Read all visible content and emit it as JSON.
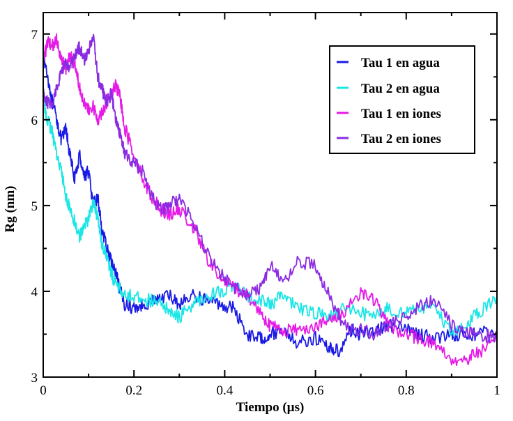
{
  "chart_data": {
    "type": "line",
    "title": "",
    "xlabel": "Tiempo (µs)",
    "ylabel": "Rg (nm)",
    "xlim": [
      0,
      1
    ],
    "ylim": [
      3,
      7.25
    ],
    "x_ticks": [
      0,
      0.2,
      0.4,
      0.6,
      0.8,
      1
    ],
    "x_tick_labels": [
      "0",
      "0.2",
      "0.4",
      "0.6",
      "0.8",
      "1"
    ],
    "y_ticks": [
      3,
      4,
      5,
      6,
      7
    ],
    "y_tick_labels": [
      "3",
      "4",
      "5",
      "6",
      "7"
    ],
    "legend_position": "top-right",
    "series": [
      {
        "name": "Tau 1 en agua",
        "color": "#1a1ae6",
        "x": [
          0,
          0.01,
          0.02,
          0.03,
          0.04,
          0.05,
          0.06,
          0.07,
          0.08,
          0.09,
          0.1,
          0.11,
          0.12,
          0.13,
          0.14,
          0.15,
          0.16,
          0.17,
          0.18,
          0.2,
          0.22,
          0.25,
          0.28,
          0.3,
          0.33,
          0.36,
          0.39,
          0.42,
          0.45,
          0.48,
          0.5,
          0.53,
          0.56,
          0.6,
          0.63,
          0.65,
          0.68,
          0.7,
          0.73,
          0.76,
          0.8,
          0.83,
          0.86,
          0.9,
          0.93,
          0.96,
          1.0
        ],
        "y": [
          6.75,
          6.5,
          6.2,
          6.0,
          5.75,
          5.9,
          5.55,
          5.3,
          5.6,
          5.35,
          5.4,
          5.0,
          5.1,
          4.7,
          4.5,
          4.35,
          4.2,
          4.0,
          3.85,
          3.8,
          3.85,
          3.9,
          3.95,
          3.85,
          3.95,
          3.9,
          3.85,
          3.8,
          3.5,
          3.45,
          3.5,
          3.55,
          3.4,
          3.45,
          3.35,
          3.3,
          3.55,
          3.5,
          3.55,
          3.6,
          3.55,
          3.5,
          3.45,
          3.5,
          3.5,
          3.5,
          3.55
        ]
      },
      {
        "name": "Tau 2 en agua",
        "color": "#1ae6e6",
        "x": [
          0,
          0.01,
          0.02,
          0.03,
          0.04,
          0.05,
          0.06,
          0.07,
          0.08,
          0.09,
          0.1,
          0.11,
          0.12,
          0.13,
          0.14,
          0.15,
          0.16,
          0.18,
          0.2,
          0.23,
          0.26,
          0.28,
          0.3,
          0.33,
          0.36,
          0.39,
          0.42,
          0.45,
          0.48,
          0.5,
          0.53,
          0.56,
          0.6,
          0.63,
          0.66,
          0.7,
          0.73,
          0.76,
          0.8,
          0.83,
          0.86,
          0.9,
          0.93,
          0.96,
          1.0
        ],
        "y": [
          6.2,
          6.0,
          5.85,
          5.6,
          5.4,
          5.1,
          4.95,
          4.8,
          4.65,
          4.75,
          4.85,
          5.05,
          4.85,
          4.55,
          4.4,
          4.2,
          4.1,
          3.95,
          3.95,
          3.9,
          3.85,
          3.75,
          3.7,
          3.85,
          3.95,
          4.0,
          4.05,
          3.95,
          3.9,
          3.85,
          3.95,
          3.8,
          3.75,
          3.7,
          3.8,
          3.75,
          3.7,
          3.8,
          3.75,
          3.8,
          3.85,
          3.5,
          3.6,
          3.75,
          3.95
        ]
      },
      {
        "name": "Tau 1 en iones",
        "color": "#e61ae6",
        "x": [
          0,
          0.01,
          0.02,
          0.03,
          0.04,
          0.05,
          0.06,
          0.07,
          0.08,
          0.09,
          0.1,
          0.11,
          0.12,
          0.13,
          0.14,
          0.15,
          0.16,
          0.17,
          0.18,
          0.2,
          0.22,
          0.24,
          0.26,
          0.28,
          0.3,
          0.33,
          0.36,
          0.39,
          0.42,
          0.45,
          0.48,
          0.5,
          0.53,
          0.56,
          0.6,
          0.63,
          0.66,
          0.7,
          0.73,
          0.76,
          0.8,
          0.83,
          0.86,
          0.9,
          0.93,
          0.96,
          1.0
        ],
        "y": [
          6.7,
          6.9,
          6.85,
          6.95,
          6.7,
          6.6,
          6.75,
          6.65,
          6.4,
          6.2,
          6.1,
          6.15,
          6.0,
          6.1,
          6.2,
          6.3,
          6.4,
          6.25,
          5.9,
          5.6,
          5.3,
          5.1,
          4.95,
          4.9,
          4.95,
          4.75,
          4.4,
          4.15,
          4.05,
          3.95,
          3.75,
          3.6,
          3.55,
          3.55,
          3.6,
          3.65,
          3.75,
          4.0,
          3.9,
          3.6,
          3.5,
          3.45,
          3.4,
          3.2,
          3.2,
          3.3,
          3.4
        ]
      },
      {
        "name": "Tau 2 en iones",
        "color": "#8a2be2",
        "x": [
          0,
          0.01,
          0.02,
          0.03,
          0.04,
          0.05,
          0.06,
          0.07,
          0.08,
          0.09,
          0.1,
          0.11,
          0.12,
          0.13,
          0.14,
          0.15,
          0.16,
          0.17,
          0.18,
          0.2,
          0.22,
          0.24,
          0.26,
          0.28,
          0.3,
          0.33,
          0.36,
          0.39,
          0.42,
          0.45,
          0.48,
          0.5,
          0.53,
          0.56,
          0.6,
          0.63,
          0.66,
          0.7,
          0.73,
          0.76,
          0.8,
          0.83,
          0.86,
          0.9,
          0.93,
          0.96,
          1.0
        ],
        "y": [
          6.3,
          6.2,
          6.15,
          6.4,
          6.55,
          6.65,
          6.6,
          6.75,
          6.85,
          6.7,
          6.8,
          7.0,
          6.5,
          6.35,
          6.2,
          6.3,
          6.0,
          5.8,
          5.6,
          5.5,
          5.4,
          5.1,
          4.95,
          5.0,
          5.1,
          4.8,
          4.45,
          4.2,
          4.05,
          3.95,
          4.05,
          4.3,
          4.1,
          4.35,
          4.3,
          3.95,
          3.6,
          3.55,
          3.5,
          3.6,
          3.7,
          3.85,
          3.9,
          3.6,
          3.5,
          3.5,
          3.45
        ]
      }
    ]
  }
}
